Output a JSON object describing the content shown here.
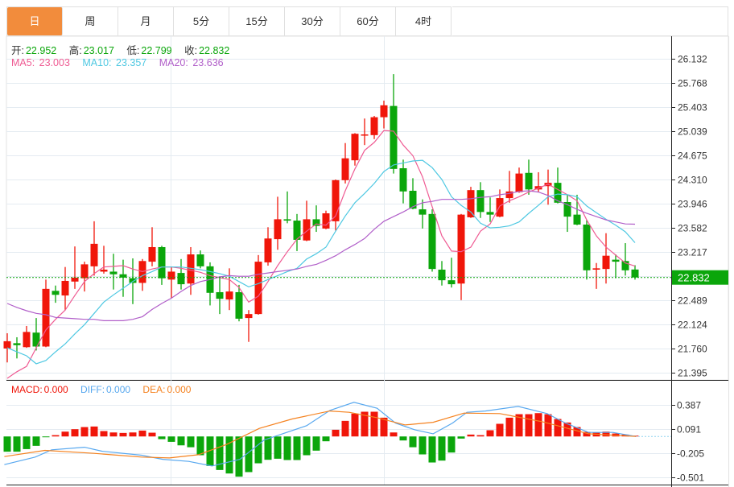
{
  "tabs": [
    "日",
    "周",
    "月",
    "5分",
    "15分",
    "30分",
    "60分",
    "4时"
  ],
  "active_tab": 0,
  "ohlc": {
    "open_label": "开:",
    "open": "22.952",
    "high_label": "高:",
    "high": "23.017",
    "low_label": "低:",
    "low": "22.799",
    "close_label": "收:",
    "close": "22.832"
  },
  "ma": {
    "ma5_label": "MA5:",
    "ma5": "23.003",
    "ma10_label": "MA10:",
    "ma10": "23.357",
    "ma20_label": "MA20:",
    "ma20": "23.636"
  },
  "macd_legend": {
    "macd_label": "MACD:",
    "macd": "0.000",
    "diff_label": "DIFF:",
    "diff": "0.000",
    "dea_label": "DEA:",
    "dea": "0.000"
  },
  "colors": {
    "up": "#f0160a",
    "down": "#0ba60b",
    "ma5": "#ef5b93",
    "ma10": "#4ec8e2",
    "ma20": "#b15fc9",
    "diff": "#58a8ef",
    "dea": "#f5821f",
    "accent": "#f28c3c",
    "last_price_bg": "#0ba60b"
  },
  "last_price": "22.832",
  "chart_data": [
    {
      "type": "candlestick",
      "title": "",
      "ylim": [
        21.395,
        26.132
      ],
      "price_ticks": [
        "26.132",
        "25.768",
        "25.403",
        "25.039",
        "24.675",
        "24.310",
        "23.946",
        "23.582",
        "23.217",
        "22.853",
        "22.489",
        "22.124",
        "21.760",
        "21.395"
      ],
      "candles_ohlc": [
        [
          21.76,
          21.99,
          21.55,
          21.87
        ],
        [
          21.84,
          21.93,
          21.61,
          21.81
        ],
        [
          21.78,
          22.1,
          21.77,
          22.01
        ],
        [
          22.0,
          22.22,
          21.73,
          21.79
        ],
        [
          21.79,
          22.8,
          21.78,
          22.66
        ],
        [
          22.63,
          22.71,
          22.45,
          22.57
        ],
        [
          22.56,
          22.99,
          22.34,
          22.78
        ],
        [
          22.77,
          23.3,
          22.66,
          22.83
        ],
        [
          22.82,
          23.07,
          22.62,
          23.03
        ],
        [
          23.0,
          23.68,
          22.86,
          23.34
        ],
        [
          22.92,
          23.31,
          22.89,
          22.95
        ],
        [
          22.92,
          23.19,
          22.65,
          22.88
        ],
        [
          22.88,
          23.1,
          22.54,
          22.83
        ],
        [
          22.82,
          23.12,
          22.43,
          22.75
        ],
        [
          22.75,
          23.11,
          22.63,
          23.08
        ],
        [
          23.07,
          23.59,
          23.0,
          23.29
        ],
        [
          23.29,
          23.31,
          22.72,
          22.82
        ],
        [
          22.8,
          22.99,
          22.52,
          22.92
        ],
        [
          22.9,
          23.11,
          22.65,
          22.73
        ],
        [
          22.74,
          23.29,
          22.57,
          23.18
        ],
        [
          23.18,
          23.24,
          22.97,
          23.0
        ],
        [
          23.0,
          23.06,
          22.41,
          22.6
        ],
        [
          22.61,
          22.85,
          22.28,
          22.51
        ],
        [
          22.5,
          22.97,
          22.34,
          22.62
        ],
        [
          22.61,
          22.72,
          22.17,
          22.21
        ],
        [
          22.22,
          22.34,
          21.86,
          22.28
        ],
        [
          22.28,
          23.17,
          22.27,
          23.07
        ],
        [
          23.06,
          23.59,
          23.01,
          23.42
        ],
        [
          23.41,
          24.05,
          23.25,
          23.71
        ],
        [
          23.71,
          24.13,
          23.65,
          23.69
        ],
        [
          23.69,
          23.79,
          23.23,
          23.4
        ],
        [
          23.39,
          23.99,
          23.38,
          23.71
        ],
        [
          23.71,
          23.92,
          23.52,
          23.61
        ],
        [
          23.57,
          23.84,
          23.56,
          23.8
        ],
        [
          23.68,
          24.31,
          23.54,
          24.3
        ],
        [
          24.3,
          24.86,
          24.25,
          24.63
        ],
        [
          24.6,
          25.01,
          24.52,
          25.0
        ],
        [
          24.98,
          25.23,
          24.83,
          24.99
        ],
        [
          24.98,
          25.27,
          24.92,
          25.25
        ],
        [
          25.25,
          25.5,
          25.08,
          25.43
        ],
        [
          25.42,
          25.9,
          24.4,
          24.47
        ],
        [
          24.48,
          24.61,
          23.95,
          24.13
        ],
        [
          24.14,
          24.33,
          23.86,
          23.87
        ],
        [
          23.86,
          24.01,
          23.57,
          23.78
        ],
        [
          23.79,
          23.86,
          22.92,
          22.96
        ],
        [
          22.95,
          23.08,
          22.71,
          22.79
        ],
        [
          22.79,
          23.13,
          22.68,
          22.73
        ],
        [
          22.74,
          23.79,
          22.49,
          23.78
        ],
        [
          23.74,
          24.2,
          23.73,
          24.15
        ],
        [
          24.15,
          24.27,
          23.73,
          23.82
        ],
        [
          23.82,
          24.04,
          23.67,
          23.78
        ],
        [
          23.75,
          24.16,
          23.74,
          24.03
        ],
        [
          24.03,
          24.44,
          23.96,
          24.13
        ],
        [
          24.12,
          24.49,
          24.11,
          24.4
        ],
        [
          24.41,
          24.61,
          24.08,
          24.16
        ],
        [
          24.16,
          24.42,
          24.12,
          24.21
        ],
        [
          24.21,
          24.46,
          23.93,
          24.26
        ],
        [
          24.26,
          24.49,
          23.95,
          23.96
        ],
        [
          23.97,
          24.08,
          23.52,
          23.75
        ],
        [
          23.78,
          24.08,
          23.62,
          23.63
        ],
        [
          23.63,
          23.7,
          22.8,
          22.94
        ],
        [
          22.95,
          23.05,
          22.66,
          22.97
        ],
        [
          22.96,
          23.5,
          22.74,
          23.16
        ],
        [
          23.1,
          23.18,
          22.82,
          23.07
        ],
        [
          23.08,
          23.35,
          22.86,
          22.94
        ],
        [
          22.952,
          23.017,
          22.799,
          22.832
        ]
      ],
      "series": [
        {
          "name": "MA5",
          "values": [
            21.31,
            21.41,
            21.49,
            21.77,
            22.04,
            22.2,
            22.34,
            22.56,
            22.77,
            22.89,
            22.99,
            23.0,
            23.01,
            22.96,
            22.92,
            22.96,
            22.99,
            22.99,
            22.97,
            22.94,
            22.91,
            22.86,
            22.83,
            22.8,
            22.68,
            22.46,
            22.55,
            22.77,
            23.01,
            23.22,
            23.41,
            23.53,
            23.64,
            23.62,
            23.76,
            24.14,
            24.47,
            24.75,
            24.87,
            25.05,
            25.04,
            24.83,
            24.67,
            24.35,
            23.9,
            23.46,
            23.23,
            23.22,
            23.29,
            23.53,
            23.64,
            23.91,
            23.99,
            24.05,
            24.12,
            24.18,
            24.24,
            24.16,
            24.08,
            23.99,
            23.7,
            23.46,
            23.29,
            23.17,
            23.05,
            23.003
          ]
        },
        {
          "name": "MA10",
          "values": [
            21.77,
            21.71,
            21.65,
            21.53,
            21.58,
            21.71,
            21.83,
            21.98,
            22.12,
            22.29,
            22.46,
            22.57,
            22.67,
            22.77,
            22.86,
            22.92,
            22.99,
            22.99,
            22.99,
            22.97,
            22.95,
            22.92,
            22.89,
            22.85,
            22.77,
            22.69,
            22.74,
            22.8,
            22.86,
            22.92,
            22.97,
            23.11,
            23.19,
            23.29,
            23.53,
            23.76,
            23.96,
            24.1,
            24.25,
            24.43,
            24.53,
            24.56,
            24.59,
            24.6,
            24.49,
            24.31,
            24.05,
            23.92,
            23.82,
            23.65,
            23.58,
            23.59,
            23.61,
            23.67,
            23.8,
            23.92,
            24.05,
            24.09,
            24.08,
            24.05,
            23.91,
            23.81,
            23.71,
            23.62,
            23.52,
            23.357
          ]
        },
        {
          "name": "MA20",
          "values": [
            22.44,
            22.38,
            22.33,
            22.29,
            22.27,
            22.23,
            22.22,
            22.21,
            22.2,
            22.2,
            22.18,
            22.18,
            22.18,
            22.2,
            22.24,
            22.35,
            22.44,
            22.52,
            22.62,
            22.71,
            22.77,
            22.8,
            22.84,
            22.86,
            22.85,
            22.85,
            22.88,
            22.9,
            22.92,
            22.94,
            22.96,
            23.0,
            23.03,
            23.09,
            23.16,
            23.25,
            23.33,
            23.42,
            23.56,
            23.68,
            23.75,
            23.82,
            23.9,
            23.96,
            23.98,
            24.01,
            24.01,
            24.01,
            24.02,
            24.04,
            24.05,
            24.08,
            24.1,
            24.13,
            24.14,
            24.12,
            24.07,
            23.99,
            23.93,
            23.86,
            23.8,
            23.75,
            23.7,
            23.67,
            23.64,
            23.636
          ]
        }
      ]
    },
    {
      "type": "bar+line",
      "title": "MACD",
      "ylim": [
        -0.59,
        0.673
      ],
      "ticks": [
        "0.387",
        "0.091",
        "-0.205",
        "-0.501"
      ],
      "tick_values": [
        0.387,
        0.091,
        -0.205,
        -0.501
      ],
      "zero": 0.0,
      "macd_bars": [
        -0.187,
        -0.187,
        -0.155,
        -0.115,
        -0.007,
        0.016,
        0.059,
        0.089,
        0.115,
        0.122,
        0.066,
        0.049,
        0.043,
        0.049,
        0.072,
        0.046,
        -0.033,
        -0.066,
        -0.109,
        -0.132,
        -0.23,
        -0.362,
        -0.411,
        -0.454,
        -0.493,
        -0.437,
        -0.329,
        -0.286,
        -0.273,
        -0.289,
        -0.289,
        -0.23,
        -0.174,
        -0.059,
        0.082,
        0.191,
        0.28,
        0.303,
        0.303,
        0.23,
        0.049,
        -0.049,
        -0.132,
        -0.22,
        -0.319,
        -0.296,
        -0.197,
        -0.026,
        0.023,
        0.016,
        0.076,
        0.155,
        0.23,
        0.273,
        0.273,
        0.286,
        0.273,
        0.214,
        0.171,
        0.115,
        0.056,
        0.049,
        0.059,
        0.036,
        0.023,
        0.01
      ],
      "diff": [
        [
          -0.3,
          -0.345
        ],
        [
          2.9,
          -0.253
        ],
        [
          4.6,
          -0.164
        ],
        [
          8.0,
          -0.132
        ],
        [
          9.8,
          -0.181
        ],
        [
          13.9,
          -0.23
        ],
        [
          16.1,
          -0.28
        ],
        [
          18.8,
          -0.306
        ],
        [
          21.2,
          -0.362
        ],
        [
          24.1,
          -0.28
        ],
        [
          26.6,
          -0.043
        ],
        [
          28.5,
          0.033
        ],
        [
          31.0,
          0.132
        ],
        [
          33.4,
          0.319
        ],
        [
          35.9,
          0.418
        ],
        [
          38.3,
          0.345
        ],
        [
          40.2,
          0.164
        ],
        [
          42.2,
          0.082
        ],
        [
          44.1,
          0.033
        ],
        [
          46.1,
          0.164
        ],
        [
          47.6,
          0.296
        ],
        [
          49.5,
          0.312
        ],
        [
          52.9,
          0.368
        ],
        [
          55.9,
          0.28
        ],
        [
          57.8,
          0.164
        ],
        [
          60.2,
          0.049
        ],
        [
          62.7,
          0.049
        ],
        [
          65.1,
          0.0
        ]
      ],
      "dea": [
        [
          -0.3,
          -0.247
        ],
        [
          3.9,
          -0.171
        ],
        [
          9.0,
          -0.207
        ],
        [
          13.9,
          -0.253
        ],
        [
          16.8,
          -0.263
        ],
        [
          19.8,
          -0.224
        ],
        [
          22.7,
          -0.099
        ],
        [
          26.1,
          0.099
        ],
        [
          29.5,
          0.214
        ],
        [
          33.4,
          0.312
        ],
        [
          35.4,
          0.296
        ],
        [
          38.3,
          0.23
        ],
        [
          41.2,
          0.141
        ],
        [
          44.1,
          0.174
        ],
        [
          47.3,
          0.286
        ],
        [
          51.0,
          0.28
        ],
        [
          55.4,
          0.181
        ],
        [
          60.2,
          0.033
        ],
        [
          65.1,
          0.0
        ]
      ]
    }
  ]
}
